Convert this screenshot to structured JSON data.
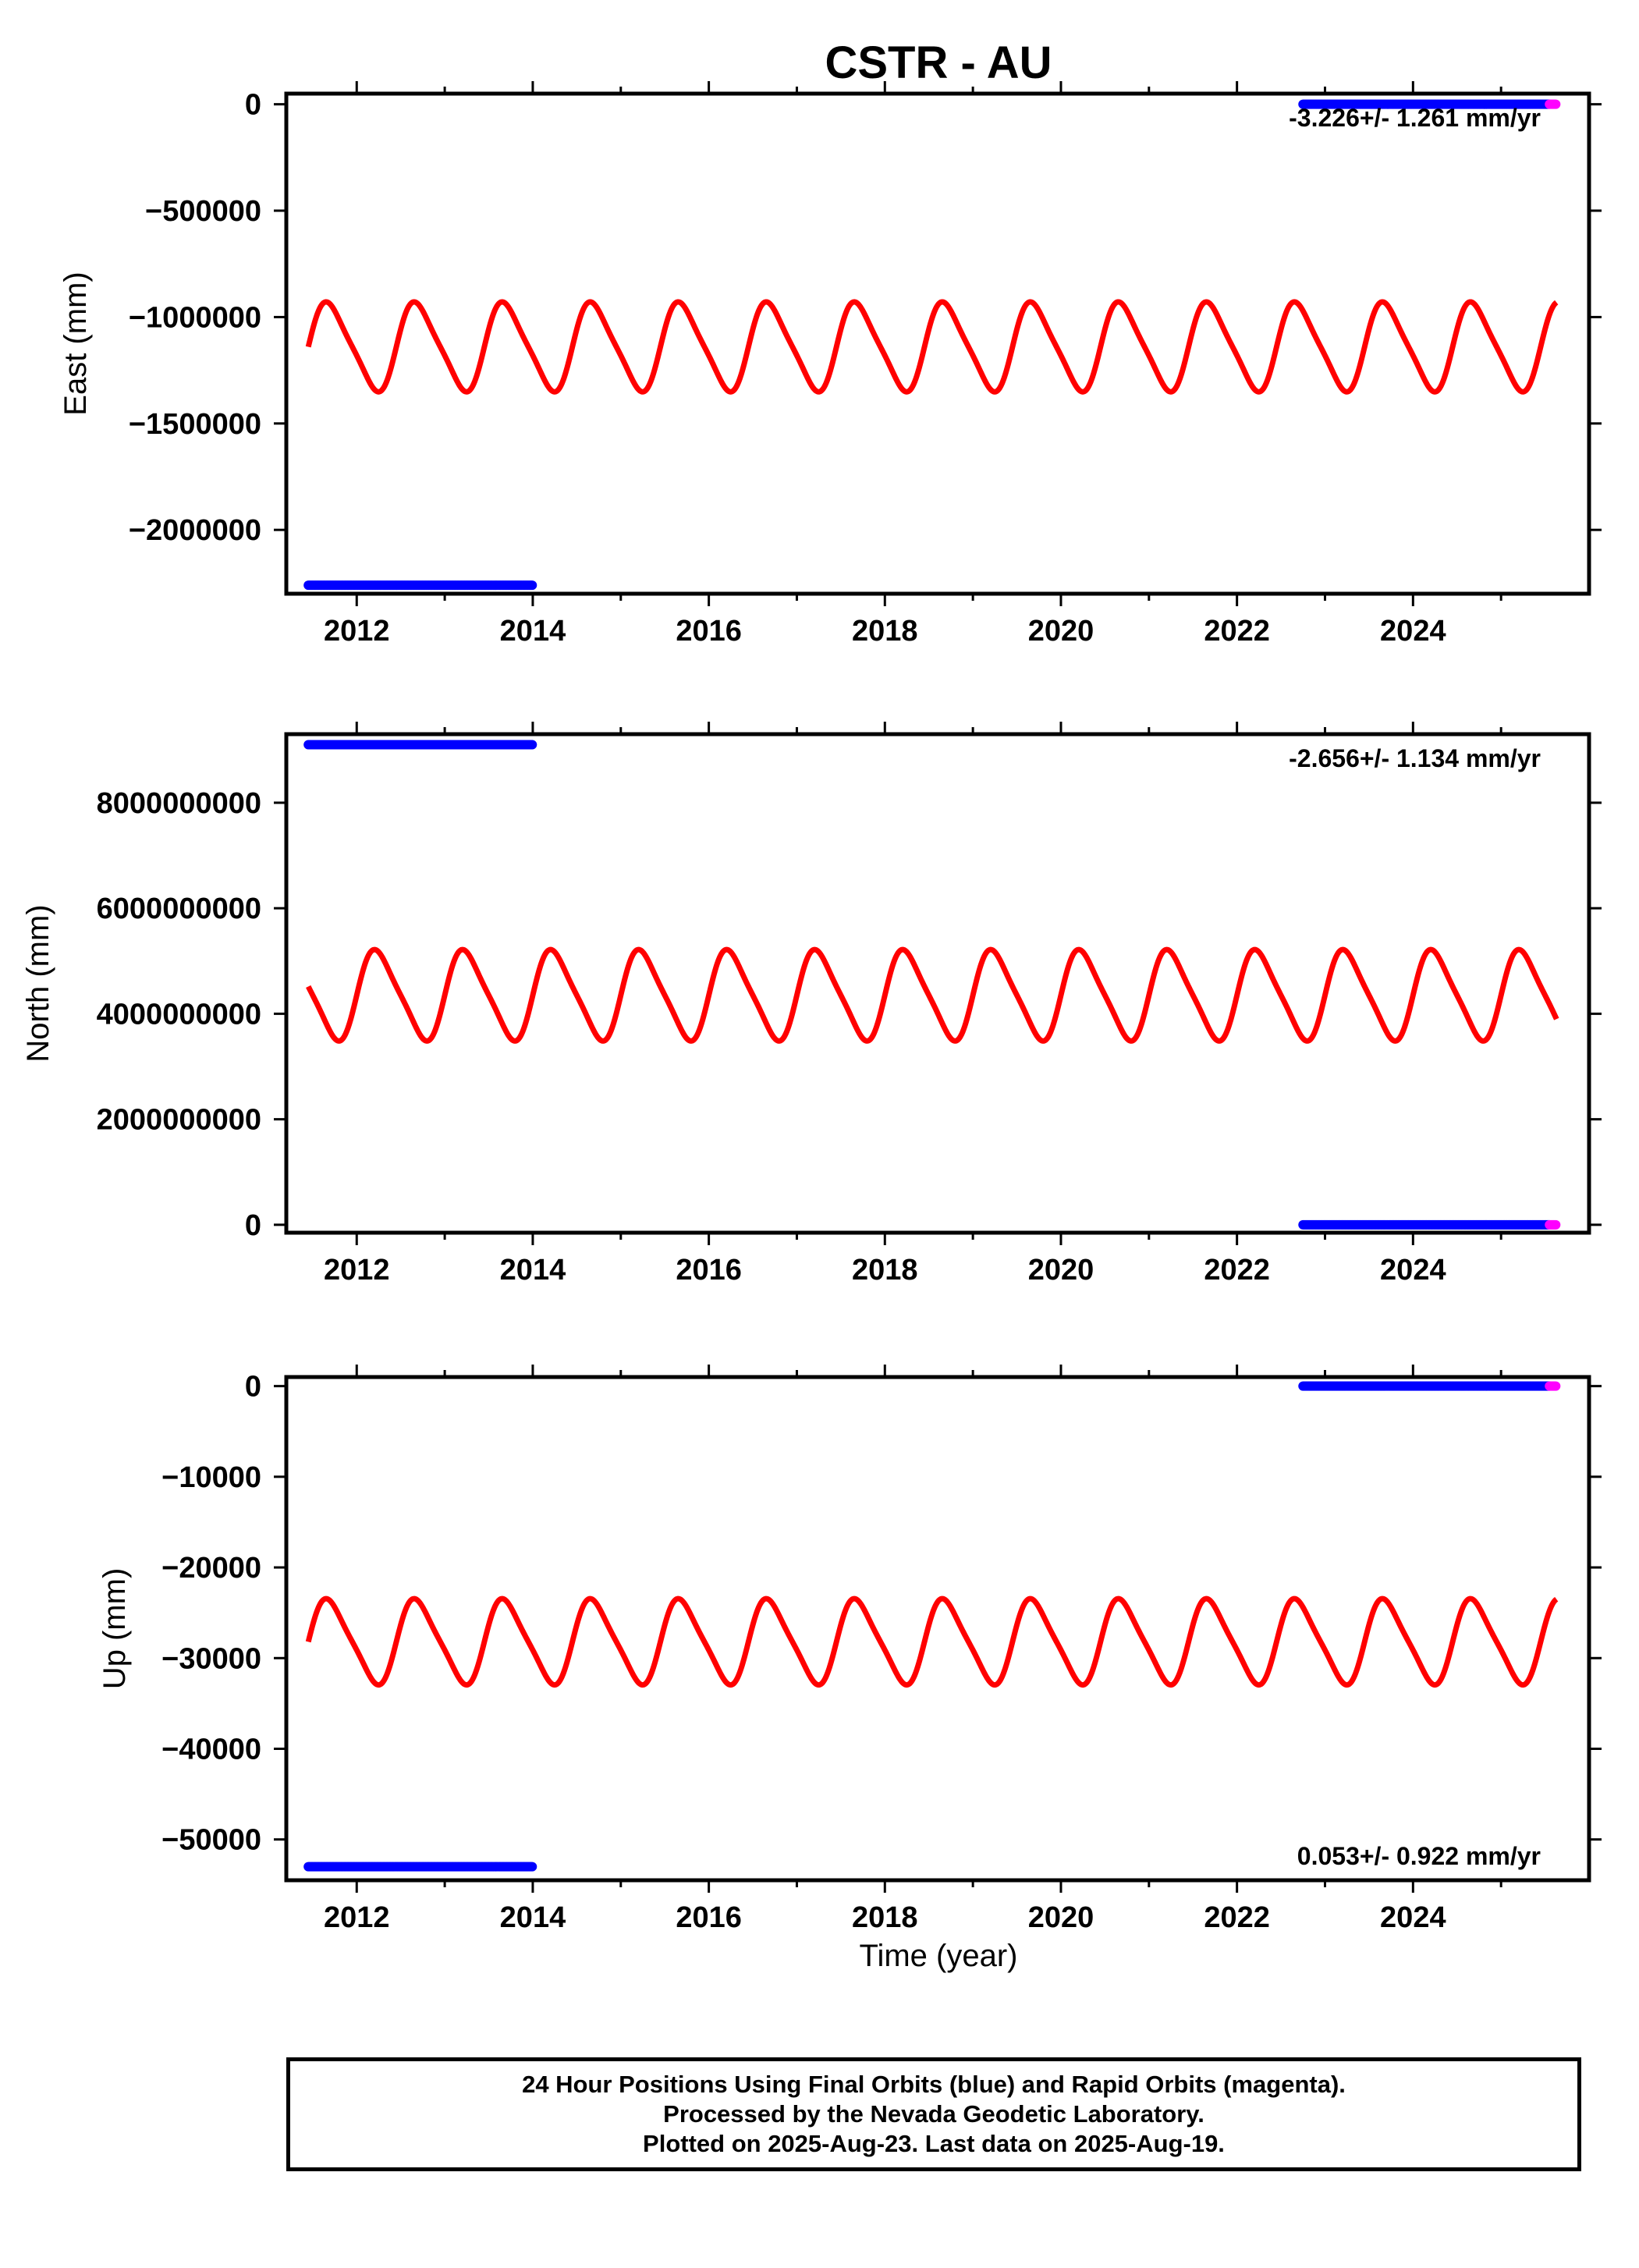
{
  "chart_data": {
    "type": "scatter",
    "title": "CSTR - AU",
    "xlabel": "Time (year)",
    "xlim": [
      2011.2,
      2026.0
    ],
    "x_ticks": [
      2012,
      2014,
      2016,
      2018,
      2020,
      2022,
      2024
    ],
    "x_tick_labels": [
      "2012",
      "2014",
      "2016",
      "2018",
      "2020",
      "2022",
      "2024"
    ],
    "colors": {
      "final": "#0000ff",
      "rapid": "#ff00ff",
      "model": "#ff0000"
    },
    "panels": [
      {
        "ylabel": "East (mm)",
        "ylim": [
          -2300000,
          50000
        ],
        "y_ticks": [
          0,
          -500000,
          -1000000,
          -1500000,
          -2000000
        ],
        "y_tick_labels": [
          "0",
          "−500000",
          "−1000000",
          "−1500000",
          "−2000000"
        ],
        "rate_label": "-3.226+/- 1.261 mm/yr",
        "series": [
          {
            "role": "final",
            "segments": [
              {
                "x": [
                  2011.45,
                  2014.0
                ],
                "y": -2260000
              },
              {
                "x": [
                  2022.75,
                  2025.55
                ],
                "y": 0
              }
            ]
          },
          {
            "role": "rapid",
            "segments": [
              {
                "x": [
                  2025.55,
                  2025.63
                ],
                "y": 0
              }
            ]
          },
          {
            "role": "model",
            "x_range": [
              2011.45,
              2025.63
            ],
            "mean": -1140000,
            "amplitude": 200000,
            "period": 1.0,
            "phase": 0.55
          }
        ]
      },
      {
        "ylabel": "North (mm)",
        "ylim": [
          -150000000,
          9300000000
        ],
        "y_ticks": [
          0,
          2000000000,
          4000000000,
          6000000000,
          8000000000
        ],
        "y_tick_labels": [
          "0",
          "2000000000",
          "4000000000",
          "6000000000",
          "8000000000"
        ],
        "rate_label": "-2.656+/- 1.134 mm/yr",
        "series": [
          {
            "role": "final",
            "segments": [
              {
                "x": [
                  2011.45,
                  2014.0
                ],
                "y": 9100000000
              },
              {
                "x": [
                  2022.75,
                  2025.55
                ],
                "y": 0
              }
            ]
          },
          {
            "role": "rapid",
            "segments": [
              {
                "x": [
                  2025.55,
                  2025.63
                ],
                "y": 0
              }
            ]
          },
          {
            "role": "model",
            "x_range": [
              2011.45,
              2025.63
            ],
            "mean": 4350000000,
            "amplitude": 820000000,
            "period": 1.0,
            "phase": 0.0
          }
        ]
      },
      {
        "ylabel": "Up (mm)",
        "ylim": [
          -54500,
          1000
        ],
        "y_ticks": [
          0,
          -10000,
          -20000,
          -30000,
          -40000,
          -50000
        ],
        "y_tick_labels": [
          "0",
          "−10000",
          "−20000",
          "−30000",
          "−40000",
          "−50000"
        ],
        "rate_label": "0.053+/- 0.922 mm/yr",
        "series": [
          {
            "role": "final",
            "segments": [
              {
                "x": [
                  2011.45,
                  2014.0
                ],
                "y": -53000
              },
              {
                "x": [
                  2022.75,
                  2025.55
                ],
                "y": 0
              }
            ]
          },
          {
            "role": "rapid",
            "segments": [
              {
                "x": [
                  2025.55,
                  2025.63
                ],
                "y": 0
              }
            ]
          },
          {
            "role": "model",
            "x_range": [
              2011.45,
              2025.63
            ],
            "mean": -28200,
            "amplitude": 4500,
            "period": 1.0,
            "phase": 0.55
          }
        ]
      }
    ],
    "footer_lines": [
      "24 Hour Positions Using Final Orbits (blue) and Rapid Orbits (magenta).",
      "Processed by the Nevada Geodetic Laboratory.",
      "Plotted on 2025-Aug-23. Last data on 2025-Aug-19."
    ]
  }
}
